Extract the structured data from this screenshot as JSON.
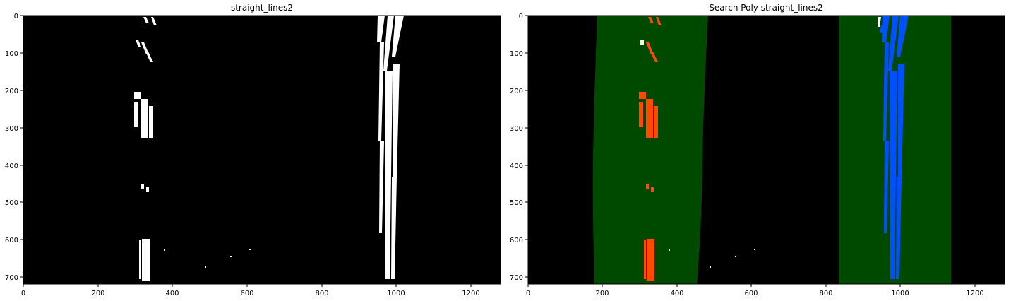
{
  "figure": {
    "panels": [
      {
        "title": "straight_lines2",
        "x_ticks": [
          "0",
          "200",
          "400",
          "600",
          "800",
          "1000",
          "1200"
        ],
        "y_ticks": [
          "0",
          "100",
          "200",
          "300",
          "400",
          "500",
          "600",
          "700"
        ],
        "xlim": [
          0,
          1280
        ],
        "ylim": [
          720,
          0
        ],
        "lane_pixel_color": "#ffffff",
        "background_color": "#000000"
      },
      {
        "title": "Search Poly straight_lines2",
        "x_ticks": [
          "0",
          "200",
          "400",
          "600",
          "800",
          "1000",
          "1200"
        ],
        "y_ticks": [
          "0",
          "100",
          "200",
          "300",
          "400",
          "500",
          "600",
          "700"
        ],
        "xlim": [
          0,
          1280
        ],
        "ylim": [
          720,
          0
        ],
        "background_color": "#000000",
        "search_region_color": "#004a00",
        "left_lane_color": "#ff4a00",
        "right_lane_color": "#0050ff",
        "left_search_band": {
          "top": [
            215,
            515
          ],
          "bottom": [
            180,
            480
          ]
        },
        "right_search_band": {
          "top": [
            835,
            1135
          ],
          "bottom": [
            835,
            1135
          ]
        }
      }
    ]
  }
}
